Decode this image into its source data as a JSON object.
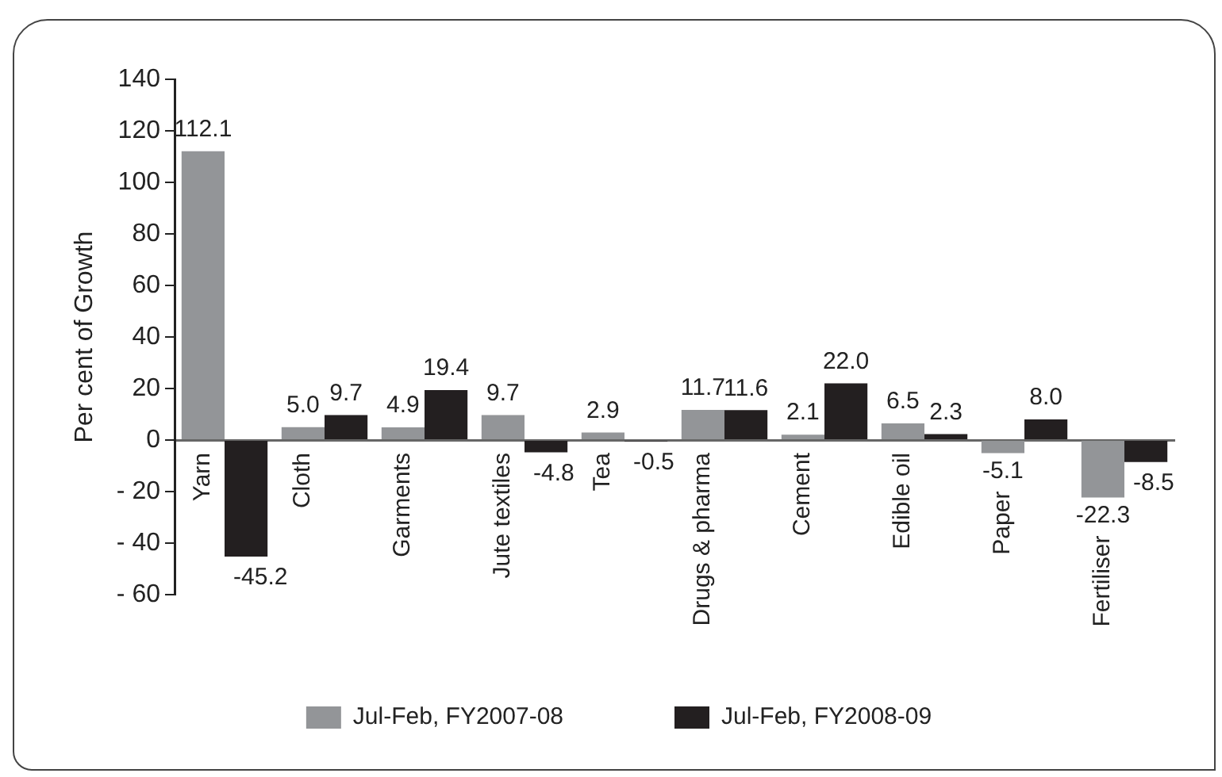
{
  "chart_data": {
    "type": "bar",
    "ylabel": "Per cent of Growth",
    "categories": [
      "Yarn",
      "Cloth",
      "Garments",
      "Jute textiles",
      "Tea",
      "Drugs & pharma",
      "Cement",
      "Edible oil",
      "Paper",
      "Fertiliser"
    ],
    "series": [
      {
        "name": "Jul-Feb, FY2007-08",
        "color": "#939598",
        "values": [
          112.1,
          5.0,
          4.9,
          9.7,
          2.9,
          11.7,
          2.1,
          6.5,
          -5.1,
          -22.3
        ],
        "value_labels": [
          "112.1",
          "5.0",
          "4.9",
          "9.7",
          "2.9",
          "11.7",
          "2.1",
          "6.5",
          "-5.1",
          "-22.3"
        ]
      },
      {
        "name": "Jul-Feb, FY2008-09",
        "color": "#231f20",
        "values": [
          -45.2,
          9.7,
          19.4,
          -4.8,
          -0.5,
          11.6,
          22.0,
          2.3,
          8.0,
          -8.5
        ],
        "value_labels": [
          "-45.2",
          "9.7",
          "19.4",
          "-4.8",
          "-0.5",
          "11.6",
          "22.0",
          "2.3",
          "8.0",
          "-8.5"
        ]
      }
    ],
    "ylim": [
      -60,
      140
    ],
    "yticks": [
      {
        "value": -60,
        "label": "- 60"
      },
      {
        "value": -40,
        "label": "- 40"
      },
      {
        "value": -20,
        "label": "- 20"
      },
      0,
      20,
      40,
      60,
      80,
      100,
      120,
      140
    ],
    "grid": false,
    "legend": "bottom"
  }
}
